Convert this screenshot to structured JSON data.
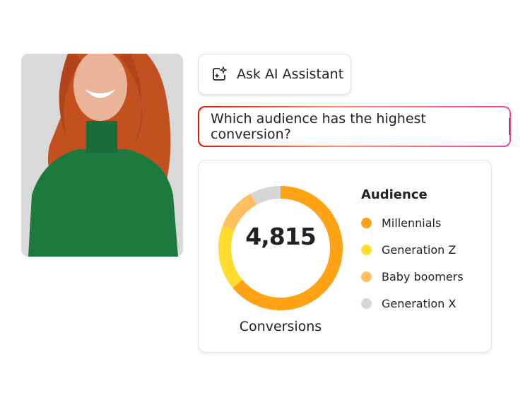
{
  "ask_button": {
    "label": "Ask AI Assistant",
    "icon": "ai-sparkle-icon"
  },
  "prompt": {
    "value": "Which audience has the highest conversion?"
  },
  "card": {
    "total": "4,815",
    "total_label": "Conversions",
    "legend_title": "Audience"
  },
  "chart_data": {
    "type": "pie",
    "donut": true,
    "legend_title": "Audience",
    "legend_placement": "right",
    "categories": [
      "Millennials",
      "Generation Z",
      "Baby boomers",
      "Generation X"
    ],
    "values": [
      64,
      17,
      11,
      8
    ],
    "colors": [
      "#ffa213",
      "#ffdc2e",
      "#ffbf5f",
      "#d6d6d6"
    ]
  }
}
